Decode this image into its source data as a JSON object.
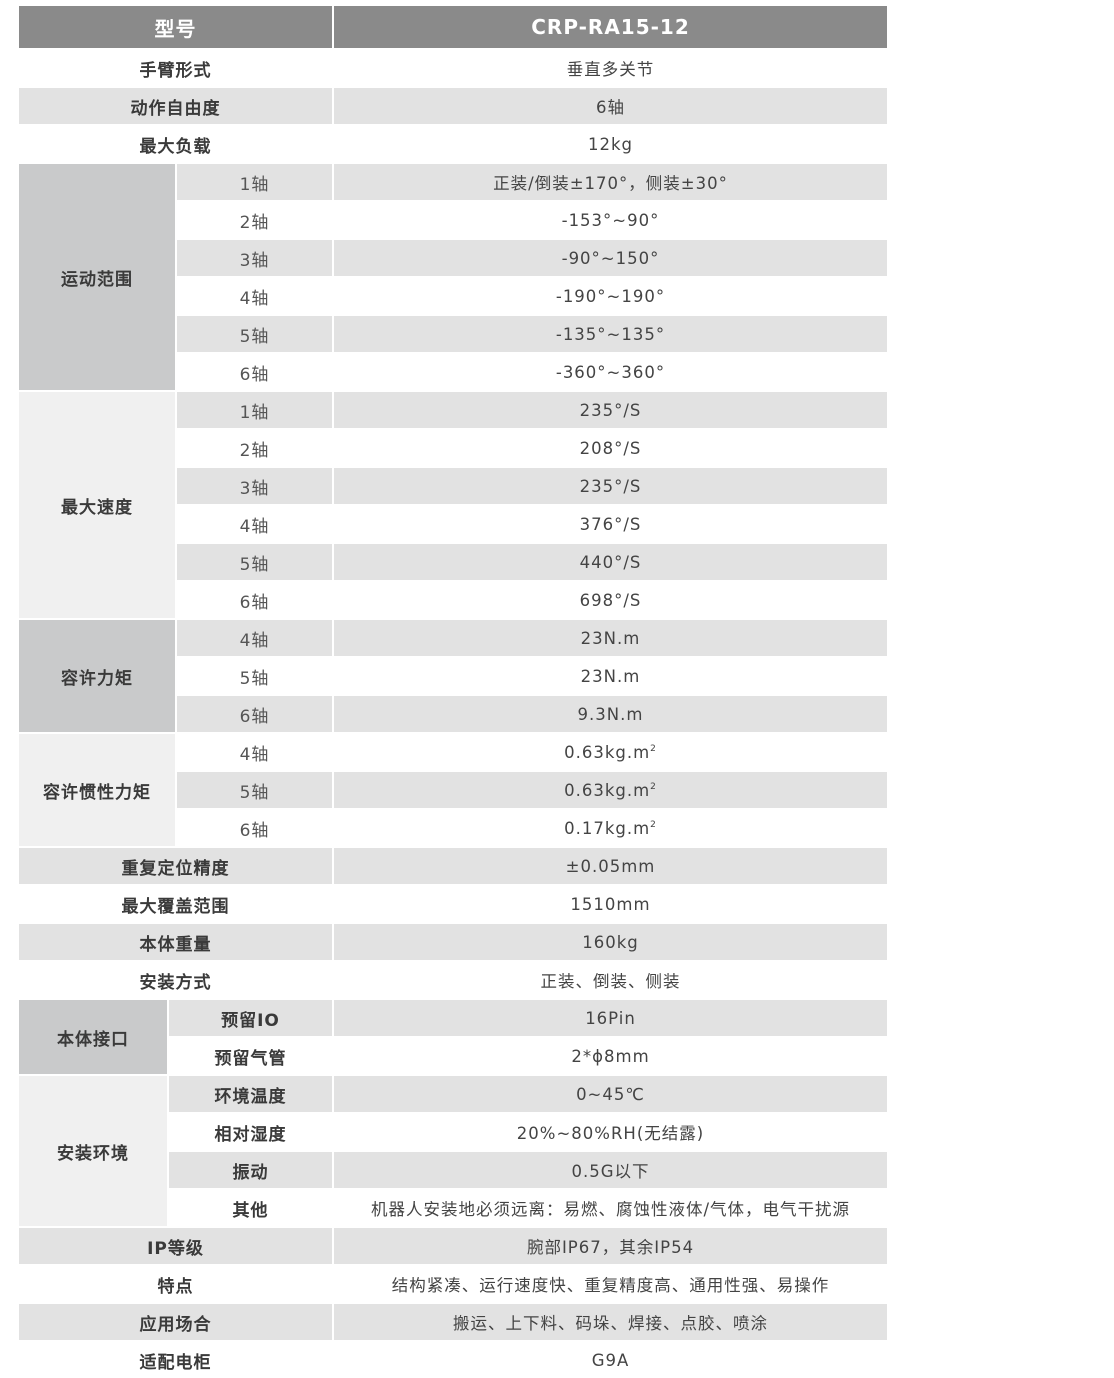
{
  "header": {
    "label": "型号",
    "value": "CRP-RA15-12"
  },
  "colors": {
    "header": "#8a8a8a",
    "stripe": "#e2e2e2",
    "group_dark": "#c9cacb",
    "group_light": "#f0f0f0"
  },
  "rows": [
    {
      "label": "手臂形式",
      "value": "垂直多关节"
    },
    {
      "label": "动作自由度",
      "value": "6轴"
    },
    {
      "label": "最大负载",
      "value": "12kg"
    },
    {
      "group": "运动范围",
      "tone": "dark",
      "items": [
        {
          "label": "1轴",
          "value": "正装/倒装±170°，侧装±30°"
        },
        {
          "label": "2轴",
          "value": "-153°~90°"
        },
        {
          "label": "3轴",
          "value": "-90°~150°"
        },
        {
          "label": "4轴",
          "value": "-190°~190°"
        },
        {
          "label": "5轴",
          "value": "-135°~135°"
        },
        {
          "label": "6轴",
          "value": "-360°~360°"
        }
      ]
    },
    {
      "group": "最大速度",
      "tone": "light",
      "items": [
        {
          "label": "1轴",
          "value": "235°/S"
        },
        {
          "label": "2轴",
          "value": "208°/S"
        },
        {
          "label": "3轴",
          "value": "235°/S"
        },
        {
          "label": "4轴",
          "value": "376°/S"
        },
        {
          "label": "5轴",
          "value": "440°/S"
        },
        {
          "label": "6轴",
          "value": "698°/S"
        }
      ]
    },
    {
      "group": "容许力矩",
      "tone": "dark",
      "items": [
        {
          "label": "4轴",
          "value": "23N.m"
        },
        {
          "label": "5轴",
          "value": "23N.m"
        },
        {
          "label": "6轴",
          "value": "9.3N.m"
        }
      ]
    },
    {
      "group": "容许惯性力矩",
      "tone": "light",
      "items": [
        {
          "label": "4轴",
          "value": "0.63kg.m",
          "sup": "2"
        },
        {
          "label": "5轴",
          "value": "0.63kg.m",
          "sup": "2"
        },
        {
          "label": "6轴",
          "value": "0.17kg.m",
          "sup": "2"
        }
      ]
    },
    {
      "label": "重复定位精度",
      "value": "±0.05mm"
    },
    {
      "label": "最大覆盖范围",
      "value": "1510mm"
    },
    {
      "label": "本体重量",
      "value": "160kg"
    },
    {
      "label": "安装方式",
      "value": "正装、倒装、侧装"
    },
    {
      "group": "本体接口",
      "tone": "dark",
      "narrow": true,
      "items": [
        {
          "label": "预留IO",
          "value": "16Pin"
        },
        {
          "label": "预留气管",
          "value": "2*ϕ8mm"
        }
      ]
    },
    {
      "group": "安装环境",
      "tone": "light",
      "narrow": true,
      "items": [
        {
          "label": "环境温度",
          "value": "0~45℃"
        },
        {
          "label": "相对湿度",
          "value": "20%~80%RH(无结露)"
        },
        {
          "label": "振动",
          "value": "0.5G以下"
        },
        {
          "label": "其他",
          "value": "机器人安装地必须远离：易燃、腐蚀性液体/气体，电气干扰源"
        }
      ]
    },
    {
      "label": "IP等级",
      "value": "腕部IP67，其余IP54"
    },
    {
      "label": "特点",
      "value": "结构紧凑、运行速度快、重复精度高、通用性强、易操作"
    },
    {
      "label": "应用场合",
      "value": "搬运、上下料、码垛、焊接、点胶、喷涂"
    },
    {
      "label": "适配电柜",
      "value": "G9A"
    }
  ]
}
